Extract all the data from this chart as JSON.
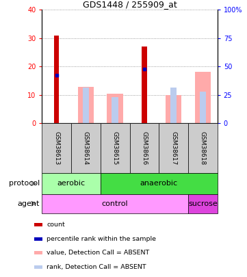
{
  "title": "GDS1448 / 255909_at",
  "samples": [
    "GSM38613",
    "GSM38614",
    "GSM38615",
    "GSM38616",
    "GSM38617",
    "GSM38618"
  ],
  "count_values": [
    30.8,
    0,
    0,
    27.0,
    0,
    0
  ],
  "absent_value": [
    0,
    12.8,
    10.3,
    0,
    10.0,
    18.2
  ],
  "absent_rank": [
    0,
    12.5,
    9.3,
    0,
    12.5,
    11.2
  ],
  "blue_dot_value": [
    17.0,
    0,
    0,
    19.0,
    0,
    0
  ],
  "left_ylim": [
    0,
    40
  ],
  "right_ylim": [
    0,
    100
  ],
  "left_yticks": [
    0,
    10,
    20,
    30,
    40
  ],
  "right_yticks": [
    0,
    25,
    50,
    75,
    100
  ],
  "right_yticklabels": [
    "0",
    "25",
    "50",
    "75",
    "100%"
  ],
  "protocol_data": [
    {
      "label": "aerobic",
      "start": 0,
      "end": 1,
      "color": "#aaffaa"
    },
    {
      "label": "anaerobic",
      "start": 2,
      "end": 5,
      "color": "#44dd44"
    }
  ],
  "agent_data": [
    {
      "label": "control",
      "start": 0,
      "end": 4,
      "color": "#ff99ff"
    },
    {
      "label": "sucrose",
      "start": 5,
      "end": 5,
      "color": "#dd44dd"
    }
  ],
  "legend_items": [
    {
      "color": "#cc0000",
      "label": "count"
    },
    {
      "color": "#0000bb",
      "label": "percentile rank within the sample"
    },
    {
      "color": "#ffaaaa",
      "label": "value, Detection Call = ABSENT"
    },
    {
      "color": "#bbccee",
      "label": "rank, Detection Call = ABSENT"
    }
  ],
  "sample_box_color": "#cccccc",
  "absent_bar_color": "#ffaaaa",
  "absent_rank_color": "#bbccee",
  "count_color": "#cc0000",
  "blue_dot_color": "#0000bb"
}
